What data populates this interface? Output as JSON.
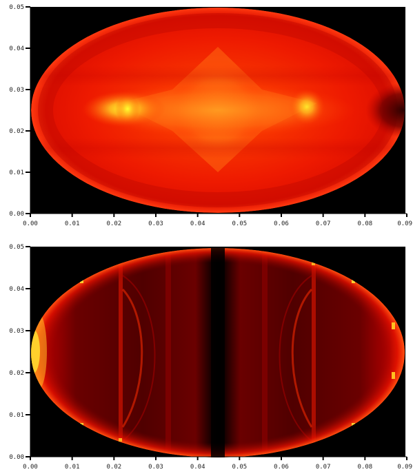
{
  "chart_data": [
    {
      "type": "heatmap",
      "title": "",
      "xlabel": "",
      "ylabel": "",
      "xlim": [
        0.0,
        0.09
      ],
      "ylim": [
        0.0,
        0.05
      ],
      "x_ticks": [
        "0.00",
        "0.01",
        "0.02",
        "0.03",
        "0.04",
        "0.05",
        "0.06",
        "0.07",
        "0.08",
        "0.09"
      ],
      "y_ticks": [
        "0.00",
        "0.01",
        "0.02",
        "0.03",
        "0.04",
        "0.05"
      ],
      "colormap": [
        "#000000",
        "#5a0000",
        "#b00000",
        "#ff2a00",
        "#ff7a10",
        "#ffd030",
        "#ffff40"
      ],
      "background": "#000000",
      "grid": false,
      "legend": "none",
      "region": "ellipse centered at (0.045, 0.025) spanning x 0.00–0.09, y 0.00–0.05",
      "features": [
        {
          "x": 0.022,
          "y": 0.025,
          "intensity": 1.0
        },
        {
          "x": 0.067,
          "y": 0.025,
          "intensity": 0.85
        },
        {
          "x": 0.045,
          "y": 0.025,
          "intensity": 0.7
        },
        {
          "x": 0.088,
          "y": 0.024,
          "intensity": 0.1
        }
      ]
    },
    {
      "type": "heatmap",
      "title": "",
      "xlabel": "",
      "ylabel": "",
      "xlim": [
        0.0,
        0.09
      ],
      "ylim": [
        0.0,
        0.05
      ],
      "x_ticks": [
        "0.00",
        "0.01",
        "0.02",
        "0.03",
        "0.04",
        "0.05",
        "0.06",
        "0.07",
        "0.08",
        "0.09"
      ],
      "y_ticks": [
        "0.00",
        "0.01",
        "0.02",
        "0.03",
        "0.04",
        "0.05"
      ],
      "colormap": [
        "#000000",
        "#3a0000",
        "#7a0000",
        "#c00000",
        "#ff3000",
        "#ffb020",
        "#ffff40"
      ],
      "background": "#000000",
      "grid": false,
      "legend": "none",
      "region": "ellipse centered at (0.045, 0.025) spanning x 0.00–0.09, y 0.00–0.05",
      "features": [
        {
          "x": 0.001,
          "y": 0.025,
          "intensity": 1.0
        },
        {
          "x": 0.021,
          "y": 0.025,
          "intensity": 0.6
        },
        {
          "x": 0.067,
          "y": 0.025,
          "intensity": 0.6
        },
        {
          "x": 0.045,
          "y": 0.025,
          "intensity": 0.0
        }
      ]
    }
  ]
}
